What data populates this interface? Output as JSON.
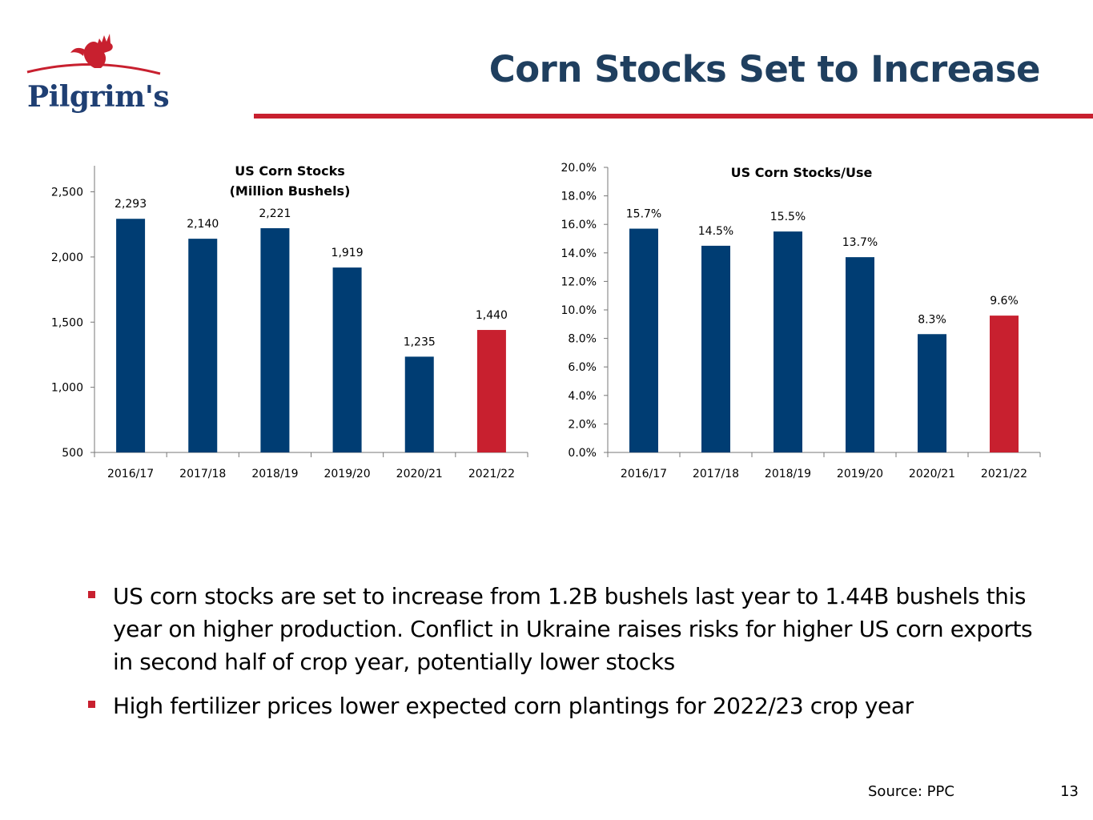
{
  "header": {
    "logo_text": "Pilgrim's",
    "title": "Corn Stocks Set to Increase"
  },
  "colors": {
    "bar": "#003d73",
    "highlight": "#c8202f",
    "title": "#1f3f5f",
    "rule": "#c8202f"
  },
  "chart_data": [
    {
      "type": "bar",
      "title_lines": [
        "US Corn Stocks",
        "(Million Bushels)"
      ],
      "categories": [
        "2016/17",
        "2017/18",
        "2018/19",
        "2019/20",
        "2020/21",
        "2021/22"
      ],
      "values": [
        2293,
        2140,
        2221,
        1919,
        1235,
        1440
      ],
      "value_labels": [
        "2,293",
        "2,140",
        "2,221",
        "1,919",
        "1,235",
        "1,440"
      ],
      "highlight_index": 5,
      "ylim": [
        500,
        2700
      ],
      "yticks": [
        500,
        1000,
        1500,
        2000,
        2500
      ],
      "ytick_labels": [
        "500",
        "1,000",
        "1,500",
        "2,000",
        "2,500"
      ],
      "xlabel": "",
      "ylabel": "",
      "grid": false,
      "legend": "none"
    },
    {
      "type": "bar",
      "title_lines": [
        "US Corn Stocks/Use"
      ],
      "categories": [
        "2016/17",
        "2017/18",
        "2018/19",
        "2019/20",
        "2020/21",
        "2021/22"
      ],
      "values": [
        15.7,
        14.5,
        15.5,
        13.7,
        8.3,
        9.6
      ],
      "value_labels": [
        "15.7%",
        "14.5%",
        "15.5%",
        "13.7%",
        "8.3%",
        "9.6%"
      ],
      "highlight_index": 5,
      "ylim": [
        0,
        20
      ],
      "yticks": [
        0,
        2,
        4,
        6,
        8,
        10,
        12,
        14,
        16,
        18,
        20
      ],
      "ytick_labels": [
        "0.0%",
        "2.0%",
        "4.0%",
        "6.0%",
        "8.0%",
        "10.0%",
        "12.0%",
        "14.0%",
        "16.0%",
        "18.0%",
        "20.0%"
      ],
      "xlabel": "",
      "ylabel": "",
      "grid": false,
      "legend": "none"
    }
  ],
  "bullets": [
    "US corn stocks are set to increase from 1.2B bushels last year to 1.44B bushels this year on higher production. Conflict in Ukraine raises risks for higher US corn exports in second half of crop year, potentially lower stocks",
    "High fertilizer prices lower expected corn plantings for 2022/23 crop year"
  ],
  "footer": {
    "source": "Source: PPC",
    "page": "13"
  }
}
